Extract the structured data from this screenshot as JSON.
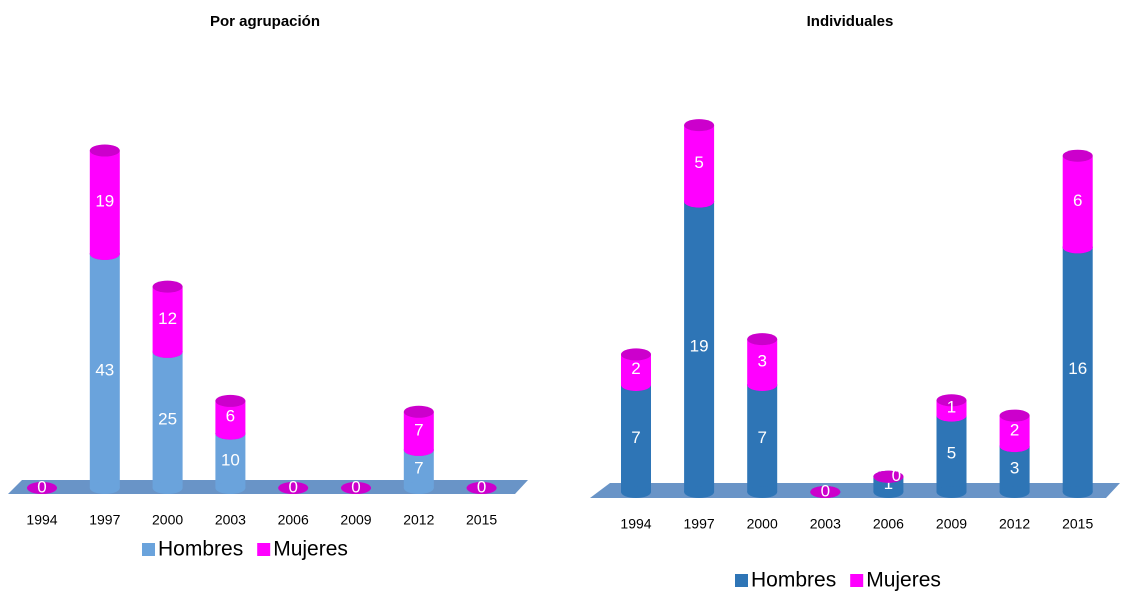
{
  "chart_data": [
    {
      "type": "bar",
      "title": "Por agrupación",
      "categories": [
        "1994",
        "1997",
        "2000",
        "2003",
        "2006",
        "2009",
        "2012",
        "2015"
      ],
      "series": [
        {
          "name": "Hombres",
          "color": "#6aa3dc",
          "values": [
            0,
            43,
            25,
            10,
            0,
            0,
            7,
            0
          ]
        },
        {
          "name": "Mujeres",
          "color": "#ff00ff",
          "values": [
            0,
            19,
            12,
            6,
            0,
            0,
            7,
            0
          ]
        }
      ],
      "ylim": [
        0,
        70
      ],
      "stacked": true
    },
    {
      "type": "bar",
      "title": "Individuales",
      "categories": [
        "1994",
        "1997",
        "2000",
        "2003",
        "2006",
        "2009",
        "2012",
        "2015"
      ],
      "series": [
        {
          "name": "Hombres",
          "color": "#2e75b6",
          "values": [
            7,
            19,
            7,
            0,
            1,
            5,
            3,
            16
          ]
        },
        {
          "name": "Mujeres",
          "color": "#ff00ff",
          "values": [
            2,
            5,
            3,
            0,
            0,
            1,
            2,
            6
          ]
        }
      ],
      "ylim": [
        0,
        28
      ],
      "stacked": true
    }
  ]
}
